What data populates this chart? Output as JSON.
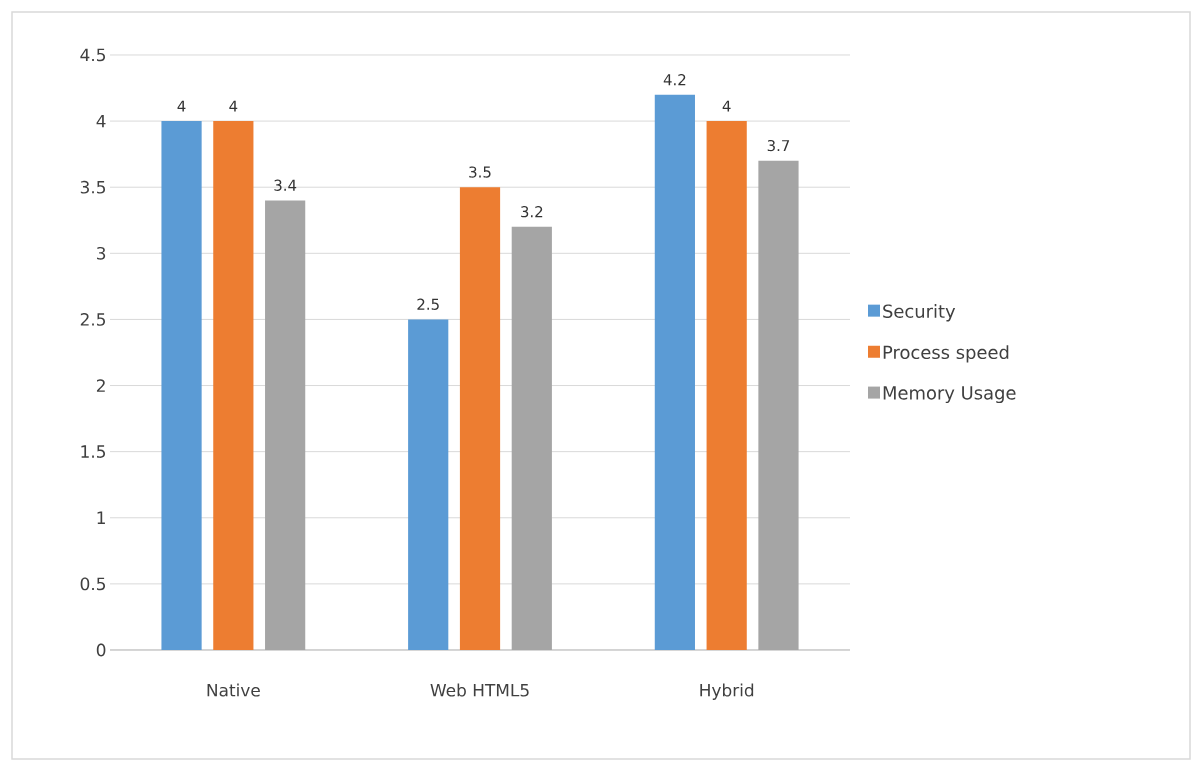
{
  "chart_data": {
    "type": "bar",
    "categories": [
      "Native",
      "Web HTML5",
      "Hybrid"
    ],
    "series": [
      {
        "name": "Security",
        "color": "#5b9bd5",
        "values": [
          4,
          2.5,
          4.2
        ]
      },
      {
        "name": "Process speed",
        "color": "#ed7d31",
        "values": [
          4,
          3.5,
          4
        ]
      },
      {
        "name": "Memory Usage",
        "color": "#a5a5a5",
        "values": [
          3.4,
          3.2,
          3.7
        ]
      }
    ],
    "ylim": [
      0,
      4.5
    ],
    "yticks": [
      0,
      0.5,
      1,
      1.5,
      2,
      2.5,
      3,
      3.5,
      4,
      4.5
    ],
    "grid": "y",
    "legend": "right",
    "data_labels": true
  }
}
